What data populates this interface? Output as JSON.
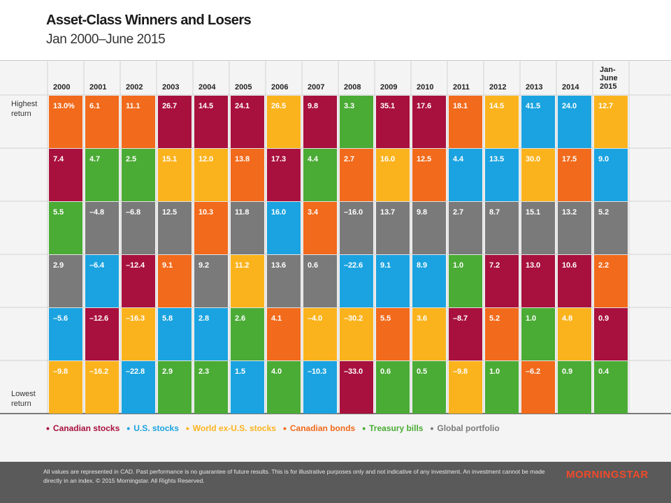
{
  "title": "Asset-Class Winners and Losers",
  "subtitle": "Jan 2000–June 2015",
  "colors": {
    "Canadian stocks": "#a8103e",
    "U.S. stocks": "#1aa3e0",
    "World ex-U.S. stocks": "#fbb31d",
    "Canadian bonds": "#f26a1b",
    "Treasury bills": "#4aab35",
    "Global portfolio": "#7a7a7a"
  },
  "chart_data": {
    "type": "table",
    "title": "Asset-Class Winners and Losers",
    "subtitle": "Jan 2000–June 2015",
    "row_labels": {
      "top": "Highest return",
      "bottom": "Lowest return"
    },
    "years": [
      {
        "label": "2000",
        "cells": [
          {
            "v": "13.0%",
            "a": "Canadian bonds"
          },
          {
            "v": "7.4",
            "a": "Canadian stocks"
          },
          {
            "v": "5.5",
            "a": "Treasury bills"
          },
          {
            "v": "2.9",
            "a": "Global portfolio"
          },
          {
            "v": "–5.6",
            "a": "U.S. stocks"
          },
          {
            "v": "–9.8",
            "a": "World ex-U.S. stocks"
          }
        ]
      },
      {
        "label": "2001",
        "cells": [
          {
            "v": "6.1",
            "a": "Canadian bonds"
          },
          {
            "v": "4.7",
            "a": "Treasury bills"
          },
          {
            "v": "–4.8",
            "a": "Global portfolio"
          },
          {
            "v": "–6.4",
            "a": "U.S. stocks"
          },
          {
            "v": "–12.6",
            "a": "Canadian stocks"
          },
          {
            "v": "–16.2",
            "a": "World ex-U.S. stocks"
          }
        ]
      },
      {
        "label": "2002",
        "cells": [
          {
            "v": "11.1",
            "a": "Canadian bonds"
          },
          {
            "v": "2.5",
            "a": "Treasury bills"
          },
          {
            "v": "–6.8",
            "a": "Global portfolio"
          },
          {
            "v": "–12.4",
            "a": "Canadian stocks"
          },
          {
            "v": "–16.3",
            "a": "World ex-U.S. stocks"
          },
          {
            "v": "–22.8",
            "a": "U.S. stocks"
          }
        ]
      },
      {
        "label": "2003",
        "cells": [
          {
            "v": "26.7",
            "a": "Canadian stocks"
          },
          {
            "v": "15.1",
            "a": "World ex-U.S. stocks"
          },
          {
            "v": "12.5",
            "a": "Global portfolio"
          },
          {
            "v": "9.1",
            "a": "Canadian bonds"
          },
          {
            "v": "5.8",
            "a": "U.S. stocks"
          },
          {
            "v": "2.9",
            "a": "Treasury bills"
          }
        ]
      },
      {
        "label": "2004",
        "cells": [
          {
            "v": "14.5",
            "a": "Canadian stocks"
          },
          {
            "v": "12.0",
            "a": "World ex-U.S. stocks"
          },
          {
            "v": "10.3",
            "a": "Canadian bonds"
          },
          {
            "v": "9.2",
            "a": "Global portfolio"
          },
          {
            "v": "2.8",
            "a": "U.S. stocks"
          },
          {
            "v": "2.3",
            "a": "Treasury bills"
          }
        ]
      },
      {
        "label": "2005",
        "cells": [
          {
            "v": "24.1",
            "a": "Canadian stocks"
          },
          {
            "v": "13.8",
            "a": "Canadian bonds"
          },
          {
            "v": "11.8",
            "a": "Global portfolio"
          },
          {
            "v": "11.2",
            "a": "World ex-U.S. stocks"
          },
          {
            "v": "2.6",
            "a": "Treasury bills"
          },
          {
            "v": "1.5",
            "a": "U.S. stocks"
          }
        ]
      },
      {
        "label": "2006",
        "cells": [
          {
            "v": "26.5",
            "a": "World ex-U.S. stocks"
          },
          {
            "v": "17.3",
            "a": "Canadian stocks"
          },
          {
            "v": "16.0",
            "a": "U.S. stocks"
          },
          {
            "v": "13.6",
            "a": "Global portfolio"
          },
          {
            "v": "4.1",
            "a": "Canadian bonds"
          },
          {
            "v": "4.0",
            "a": "Treasury bills"
          }
        ]
      },
      {
        "label": "2007",
        "cells": [
          {
            "v": "9.8",
            "a": "Canadian stocks"
          },
          {
            "v": "4.4",
            "a": "Treasury bills"
          },
          {
            "v": "3.4",
            "a": "Canadian bonds"
          },
          {
            "v": "0.6",
            "a": "Global portfolio"
          },
          {
            "v": "–4.0",
            "a": "World ex-U.S. stocks"
          },
          {
            "v": "–10.3",
            "a": "U.S. stocks"
          }
        ]
      },
      {
        "label": "2008",
        "cells": [
          {
            "v": "3.3",
            "a": "Treasury bills"
          },
          {
            "v": "2.7",
            "a": "Canadian bonds"
          },
          {
            "v": "–16.0",
            "a": "Global portfolio"
          },
          {
            "v": "–22.6",
            "a": "U.S. stocks"
          },
          {
            "v": "–30.2",
            "a": "World ex-U.S. stocks"
          },
          {
            "v": "–33.0",
            "a": "Canadian stocks"
          }
        ]
      },
      {
        "label": "2009",
        "cells": [
          {
            "v": "35.1",
            "a": "Canadian stocks"
          },
          {
            "v": "16.0",
            "a": "World ex-U.S. stocks"
          },
          {
            "v": "13.7",
            "a": "Global portfolio"
          },
          {
            "v": "9.1",
            "a": "U.S. stocks"
          },
          {
            "v": "5.5",
            "a": "Canadian bonds"
          },
          {
            "v": "0.6",
            "a": "Treasury bills"
          }
        ]
      },
      {
        "label": "2010",
        "cells": [
          {
            "v": "17.6",
            "a": "Canadian stocks"
          },
          {
            "v": "12.5",
            "a": "Canadian bonds"
          },
          {
            "v": "9.8",
            "a": "Global portfolio"
          },
          {
            "v": "8.9",
            "a": "U.S. stocks"
          },
          {
            "v": "3.6",
            "a": "World ex-U.S. stocks"
          },
          {
            "v": "0.5",
            "a": "Treasury bills"
          }
        ]
      },
      {
        "label": "2011",
        "cells": [
          {
            "v": "18.1",
            "a": "Canadian bonds"
          },
          {
            "v": "4.4",
            "a": "U.S. stocks"
          },
          {
            "v": "2.7",
            "a": "Global portfolio"
          },
          {
            "v": "1.0",
            "a": "Treasury bills"
          },
          {
            "v": "–8.7",
            "a": "Canadian stocks"
          },
          {
            "v": "–9.8",
            "a": "World ex-U.S. stocks"
          }
        ]
      },
      {
        "label": "2012",
        "cells": [
          {
            "v": "14.5",
            "a": "World ex-U.S. stocks"
          },
          {
            "v": "13.5",
            "a": "U.S. stocks"
          },
          {
            "v": "8.7",
            "a": "Global portfolio"
          },
          {
            "v": "7.2",
            "a": "Canadian stocks"
          },
          {
            "v": "5.2",
            "a": "Canadian bonds"
          },
          {
            "v": "1.0",
            "a": "Treasury bills"
          }
        ]
      },
      {
        "label": "2013",
        "cells": [
          {
            "v": "41.5",
            "a": "U.S. stocks"
          },
          {
            "v": "30.0",
            "a": "World ex-U.S. stocks"
          },
          {
            "v": "15.1",
            "a": "Global portfolio"
          },
          {
            "v": "13.0",
            "a": "Canadian stocks"
          },
          {
            "v": "1.0",
            "a": "Treasury bills"
          },
          {
            "v": "–6.2",
            "a": "Canadian bonds"
          }
        ]
      },
      {
        "label": "2014",
        "cells": [
          {
            "v": "24.0",
            "a": "U.S. stocks"
          },
          {
            "v": "17.5",
            "a": "Canadian bonds"
          },
          {
            "v": "13.2",
            "a": "Global portfolio"
          },
          {
            "v": "10.6",
            "a": "Canadian stocks"
          },
          {
            "v": "4.8",
            "a": "World ex-U.S. stocks"
          },
          {
            "v": "0.9",
            "a": "Treasury bills"
          }
        ]
      },
      {
        "label": "Jan-June 2015",
        "cells": [
          {
            "v": "12.7",
            "a": "World ex-U.S. stocks"
          },
          {
            "v": "9.0",
            "a": "U.S. stocks"
          },
          {
            "v": "5.2",
            "a": "Global portfolio"
          },
          {
            "v": "2.2",
            "a": "Canadian bonds"
          },
          {
            "v": "0.9",
            "a": "Canadian stocks"
          },
          {
            "v": "0.4",
            "a": "Treasury bills"
          }
        ]
      }
    ]
  },
  "legend": [
    {
      "label": "Canadian stocks",
      "color": "#a8103e"
    },
    {
      "label": "U.S. stocks",
      "color": "#1aa3e0"
    },
    {
      "label": "World ex-U.S. stocks",
      "color": "#fbb31d"
    },
    {
      "label": "Canadian bonds",
      "color": "#f26a1b"
    },
    {
      "label": "Treasury bills",
      "color": "#4aab35"
    },
    {
      "label": "Global portfolio",
      "color": "#7a7a7a"
    }
  ],
  "footer": {
    "disclaimer": "All values are represented in CAD. Past performance is no guarantee of future results. This is for illustrative purposes only and not indicative of any investment. An investment cannot be made directly in an index. © 2015 Morningstar. All Rights Reserved.",
    "logo": "MORNINGSTAR"
  }
}
